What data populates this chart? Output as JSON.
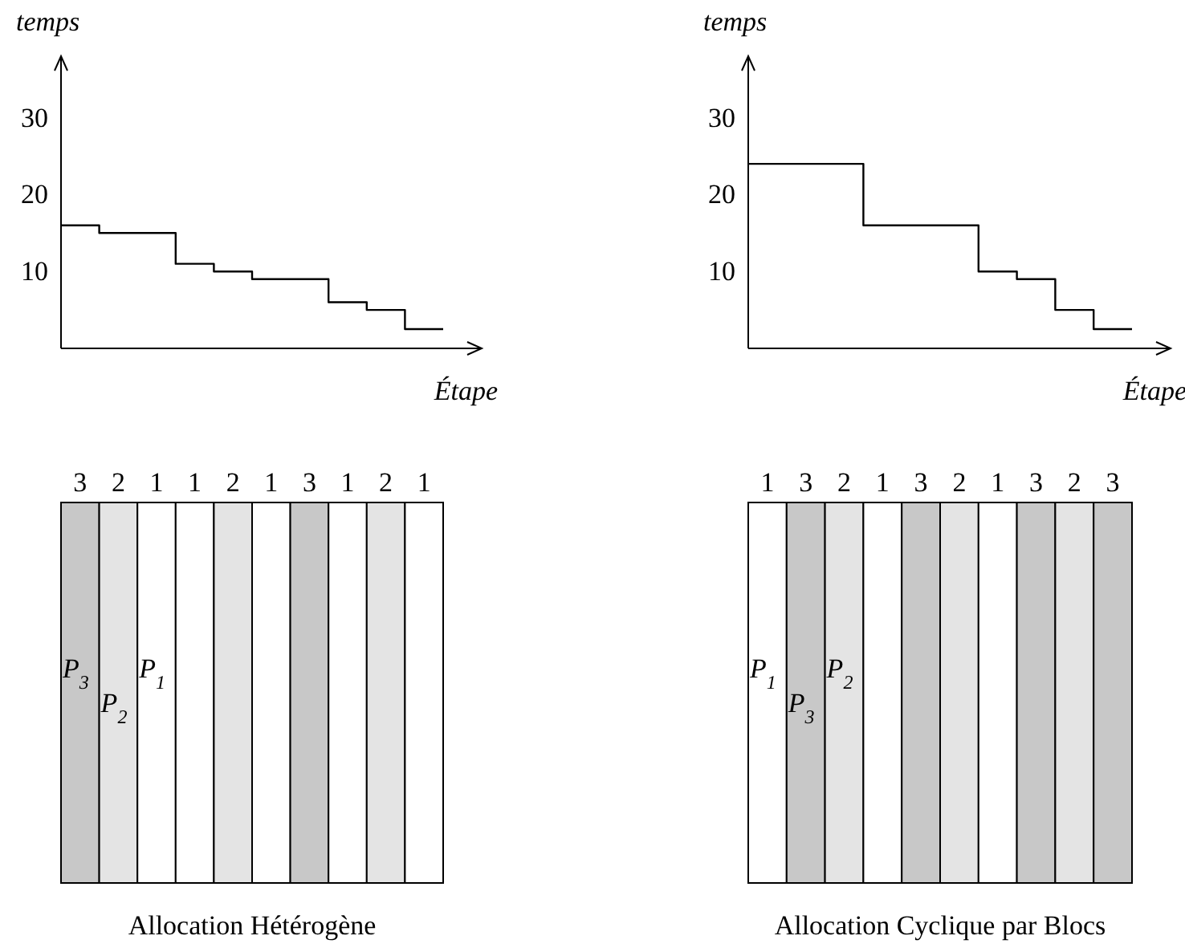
{
  "chart_data": [
    {
      "type": "step",
      "ylabel": "temps",
      "xlabel": "Étape",
      "categories": [
        null,
        null,
        null,
        null,
        null,
        null,
        null,
        null,
        null,
        null,
        null
      ],
      "values": [
        16,
        15,
        15,
        11,
        10,
        9,
        9,
        6,
        5,
        2.5,
        2.5
      ],
      "color": "#000000",
      "ylim": [
        0,
        38
      ],
      "yticks": [
        10,
        20,
        30
      ]
    },
    {
      "type": "step",
      "ylabel": "temps",
      "xlabel": "Étape",
      "categories": [
        null,
        null,
        null,
        null,
        null,
        null,
        null,
        null,
        null,
        null,
        null
      ],
      "values": [
        24,
        24,
        24,
        16,
        16,
        16,
        10,
        9,
        5,
        2.5,
        2.5
      ],
      "color": "#000000",
      "ylim": [
        0,
        38
      ],
      "yticks": [
        10,
        20,
        30
      ]
    },
    {
      "type": "other",
      "title": "Allocation Hétérogène",
      "categories": [
        "3",
        "2",
        "1",
        "1",
        "2",
        "1",
        "3",
        "1",
        "2",
        "1"
      ],
      "colors": [
        "#c8c8c8",
        "#e4e4e4",
        "#ffffff",
        "#ffffff",
        "#e4e4e4",
        "#ffffff",
        "#c8c8c8",
        "#ffffff",
        "#e4e4e4",
        "#ffffff"
      ],
      "annotations": [
        "P$_{3}$",
        "P$_{2}$",
        "P$_{1}$"
      ]
    },
    {
      "type": "other",
      "title": "Allocation Cyclique par Blocs",
      "categories": [
        "1",
        "3",
        "2",
        "1",
        "3",
        "2",
        "1",
        "3",
        "2",
        "3"
      ],
      "colors": [
        "#ffffff",
        "#c8c8c8",
        "#e4e4e4",
        "#ffffff",
        "#c8c8c8",
        "#e4e4e4",
        "#ffffff",
        "#c8c8c8",
        "#e4e4e4",
        "#c8c8c8"
      ],
      "annotations": [
        "P$_{1}$",
        "P$_{3}$",
        "P$_{2}$"
      ]
    }
  ]
}
